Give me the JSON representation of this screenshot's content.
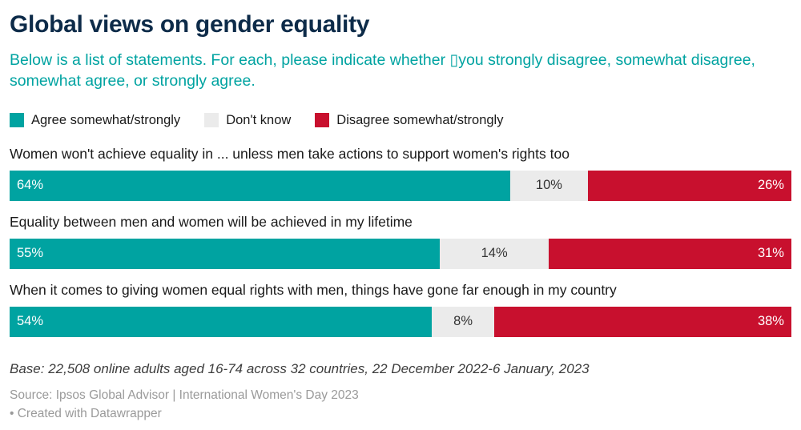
{
  "header": {
    "title": "Global views on gender equality",
    "subtitle": "Below is a list of statements. For each, please indicate whether ▯you strongly disagree, somewhat disagree, somewhat agree, or strongly agree."
  },
  "legend": [
    {
      "label": "Agree somewhat/strongly",
      "color": "#00a3a1"
    },
    {
      "label": "Don't know",
      "color": "#ebebeb"
    },
    {
      "label": "Disagree somewhat/strongly",
      "color": "#c8102e"
    }
  ],
  "chart_data": {
    "type": "bar",
    "orientation": "horizontal-stacked",
    "value_suffix": "%",
    "xlim": [
      0,
      100
    ],
    "grid": false,
    "legend_position": "top",
    "categories": [
      "Women won't achieve equality in ... unless men take actions to support women's rights too",
      "Equality between men and women will be achieved in my lifetime",
      "When it comes to giving women equal rights with men, things have gone far enough in my country"
    ],
    "series": [
      {
        "key": "agree",
        "name": "Agree somewhat/strongly",
        "values": [
          64,
          55,
          54
        ],
        "color": "#00a3a1",
        "text_color": "#ffffff"
      },
      {
        "key": "dont-know",
        "name": "Don't know",
        "values": [
          10,
          14,
          8
        ],
        "color": "#ebebeb",
        "text_color": "#333333"
      },
      {
        "key": "disagree",
        "name": "Disagree somewhat/strongly",
        "values": [
          26,
          31,
          38
        ],
        "color": "#c8102e",
        "text_color": "#ffffff"
      }
    ]
  },
  "footer": {
    "base": "Base: 22,508 online adults aged 16-74 across 32 countries, 22 December 2022-6 January, 2023",
    "source": "Source: Ipsos Global Advisor | International Women's Day 2023",
    "credit": "• Created with Datawrapper"
  }
}
